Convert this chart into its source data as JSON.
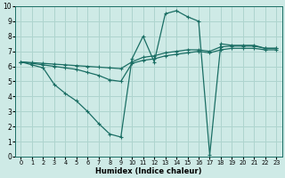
{
  "xlabel": "Humidex (Indice chaleur)",
  "xlim": [
    -0.5,
    23.5
  ],
  "ylim": [
    0,
    10
  ],
  "xticks": [
    0,
    1,
    2,
    3,
    4,
    5,
    6,
    7,
    8,
    9,
    10,
    11,
    12,
    13,
    14,
    15,
    16,
    17,
    18,
    19,
    20,
    21,
    22,
    23
  ],
  "yticks": [
    0,
    1,
    2,
    3,
    4,
    5,
    6,
    7,
    8,
    9,
    10
  ],
  "bg_color": "#ceeae6",
  "line_color": "#1a6e64",
  "grid_color": "#aed4ce",
  "line1_x": [
    0,
    1,
    2,
    3,
    4,
    5,
    6,
    7,
    8,
    9,
    10,
    11,
    12,
    13,
    14,
    15,
    16,
    17,
    18,
    19,
    20,
    21,
    22,
    23
  ],
  "line1_y": [
    6.3,
    6.1,
    5.9,
    4.8,
    4.2,
    3.7,
    3.0,
    2.2,
    1.5,
    1.3,
    6.5,
    8.0,
    6.3,
    9.5,
    9.7,
    9.3,
    9.0,
    0.1,
    7.5,
    7.4,
    7.4,
    7.4,
    7.2,
    7.2
  ],
  "line2_x": [
    0,
    1,
    2,
    3,
    4,
    5,
    6,
    7,
    8,
    9,
    10,
    11,
    12,
    13,
    14,
    15,
    16,
    17,
    18,
    19,
    20,
    21,
    22,
    23
  ],
  "line2_y": [
    6.3,
    6.2,
    6.1,
    6.0,
    5.9,
    5.8,
    5.6,
    5.4,
    5.1,
    5.0,
    6.2,
    6.4,
    6.5,
    6.7,
    6.8,
    6.9,
    7.0,
    6.9,
    7.1,
    7.2,
    7.2,
    7.2,
    7.1,
    7.1
  ],
  "line3_x": [
    0,
    1,
    2,
    3,
    4,
    5,
    6,
    7,
    8,
    9,
    10,
    11,
    12,
    13,
    14,
    15,
    16,
    17,
    18,
    19,
    20,
    21,
    22,
    23
  ],
  "line3_y": [
    6.3,
    6.25,
    6.2,
    6.15,
    6.1,
    6.05,
    6.0,
    5.95,
    5.9,
    5.85,
    6.3,
    6.6,
    6.7,
    6.9,
    7.0,
    7.1,
    7.1,
    7.0,
    7.3,
    7.35,
    7.35,
    7.35,
    7.2,
    7.2
  ]
}
